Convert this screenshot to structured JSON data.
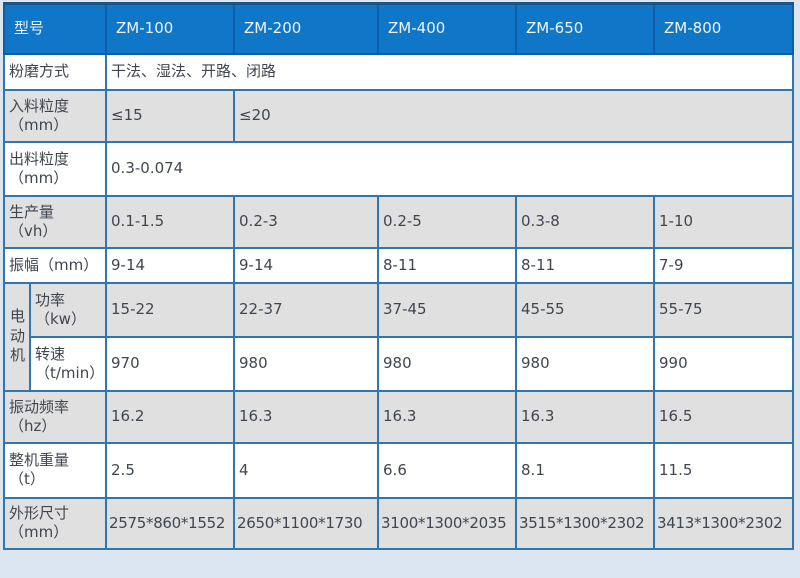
{
  "colors": {
    "header_bg": "#0f76c8",
    "header_text": "#eef5fc",
    "cell_border": "#3176af",
    "outer_border": "#1d5486",
    "row_gray": "#e0e0e0",
    "row_white": "#ffffff",
    "page_bg": "#dce6f1",
    "body_text": "#404650"
  },
  "table": {
    "header": {
      "type_label": "型号",
      "models": [
        "ZM-100",
        "ZM-200",
        "ZM-400",
        "ZM-650",
        "ZM-800"
      ]
    },
    "rows": {
      "grinding": {
        "label": "粉磨方式",
        "value": "干法、湿法、开路、闭路"
      },
      "feed_size": {
        "label_line1": "入料粒度",
        "label_line2": "（mm）",
        "value_zm100": "≤15",
        "value_rest": "≤20"
      },
      "output_size": {
        "label_line1": "出料粒度",
        "label_line2": "（mm）",
        "value": "0.3-0.074"
      },
      "capacity": {
        "label_line1": "生产量",
        "label_line2": "（vh）",
        "values": [
          "0.1-1.5",
          "0.2-3",
          "0.2-5",
          "0.3-8",
          "1-10"
        ]
      },
      "amplitude": {
        "label": "振幅（mm）",
        "values": [
          "9-14",
          "9-14",
          "8-11",
          "8-11",
          "7-9"
        ]
      },
      "motor": {
        "group_label": "电动机",
        "power": {
          "label_line1": "功率",
          "label_line2": "（kw）",
          "values": [
            "15-22",
            "22-37",
            "37-45",
            "45-55",
            "55-75"
          ]
        },
        "speed": {
          "label_line1": "转速",
          "label_line2": "（t/min）",
          "values": [
            "970",
            "980",
            "980",
            "980",
            "990"
          ]
        }
      },
      "frequency": {
        "label_line1": "振动频率",
        "label_line2": "（hz）",
        "values": [
          "16.2",
          "16.3",
          "16.3",
          "16.3",
          "16.5"
        ]
      },
      "weight": {
        "label_line1": "整机重量",
        "label_line2": "（t）",
        "values": [
          "2.5",
          "4",
          "6.6",
          "8.1",
          "11.5"
        ]
      },
      "dimensions": {
        "label_line1": "外形尺寸",
        "label_line2": "（mm）",
        "values": [
          "2575*860*1552",
          "2650*1100*1730",
          "3100*1300*2035",
          "3515*1300*2302",
          "3413*1300*2302"
        ]
      }
    }
  }
}
